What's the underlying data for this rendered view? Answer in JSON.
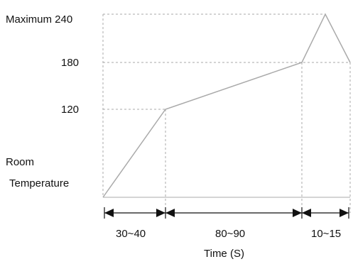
{
  "diagram": {
    "y_labels": {
      "maximum": "Maximum 240",
      "v180": "180",
      "v120": "120",
      "room_line1": "Room",
      "room_line2": "Temperature"
    },
    "segments": [
      "30~40",
      "80~90",
      "10~15"
    ],
    "x_title": "Time (S)",
    "colors": {
      "curve": "#aaaaaa",
      "guide": "#aaaaaa",
      "axis": "#111111",
      "text": "#111111"
    }
  }
}
